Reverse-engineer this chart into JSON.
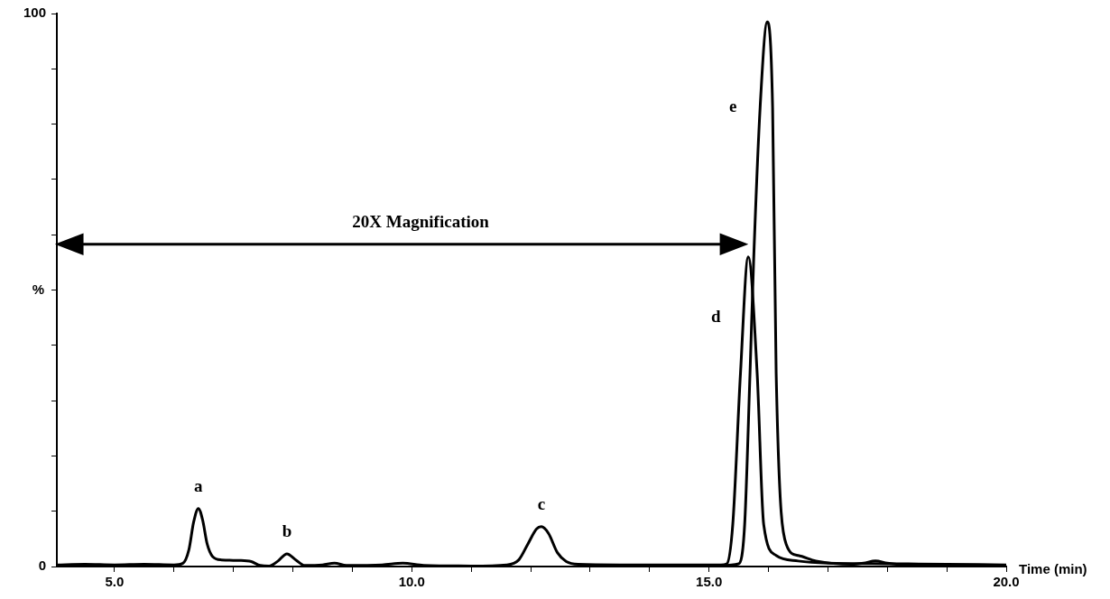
{
  "chart_data": {
    "type": "line",
    "xlabel": "Time (min)",
    "ylabel": "%",
    "xlim": [
      4.03,
      20
    ],
    "ylim": [
      0,
      100
    ],
    "xticks": [
      {
        "value": 5,
        "label": "5.0"
      },
      {
        "value": 6,
        "label": null
      },
      {
        "value": 7,
        "label": null
      },
      {
        "value": 8,
        "label": null
      },
      {
        "value": 9,
        "label": null
      },
      {
        "value": 10,
        "label": "10.0"
      },
      {
        "value": 11,
        "label": null
      },
      {
        "value": 12,
        "label": null
      },
      {
        "value": 13,
        "label": null
      },
      {
        "value": 14,
        "label": null
      },
      {
        "value": 15,
        "label": "15.0"
      },
      {
        "value": 16,
        "label": null
      },
      {
        "value": 17,
        "label": null
      },
      {
        "value": 18,
        "label": null
      },
      {
        "value": 19,
        "label": null
      },
      {
        "value": 20,
        "label": "20.0"
      }
    ],
    "yticks": [
      0,
      {
        "value": 10,
        "label": null
      },
      {
        "value": 20,
        "label": null
      },
      {
        "value": 30,
        "label": null
      },
      {
        "value": 40,
        "label": null
      },
      {
        "value": 50,
        "label": null
      },
      {
        "value": 60,
        "label": null
      },
      {
        "value": 70,
        "label": null
      },
      {
        "value": 80,
        "label": null
      },
      {
        "value": 90,
        "label": null
      },
      100
    ],
    "grid": false,
    "legend": false,
    "marker": "none",
    "line_style": "solid",
    "series": [
      {
        "color": "#000000",
        "x": [
          4.03,
          4.5,
          5.0,
          5.5,
          6.0,
          6.15,
          6.25,
          6.33,
          6.41,
          6.48,
          6.56,
          6.65,
          6.8,
          7.1,
          7.3,
          7.45,
          7.6,
          7.75,
          7.9,
          8.05,
          8.2,
          8.5,
          8.7,
          8.9,
          9.5,
          9.85,
          10.2,
          11.0,
          11.6,
          11.8,
          11.95,
          12.1,
          12.18,
          12.3,
          12.45,
          12.6,
          12.8,
          13.5,
          14.5,
          15.2,
          15.3,
          15.4,
          15.53,
          15.66,
          15.81,
          15.92,
          16.13,
          16.5,
          17.0,
          18.0,
          19.0,
          20.0
        ],
        "values": [
          0.3,
          0.4,
          0.3,
          0.4,
          0.3,
          0.6,
          3,
          8,
          10.5,
          8.5,
          4,
          1.8,
          1.2,
          1.1,
          0.9,
          0.2,
          0.1,
          1.0,
          2.3,
          1.2,
          0.2,
          0.3,
          0.6,
          0.2,
          0.3,
          0.6,
          0.2,
          0.1,
          0.3,
          1.2,
          4,
          6.8,
          7.2,
          6,
          2.5,
          0.9,
          0.4,
          0.3,
          0.3,
          0.3,
          0.5,
          7.6,
          35,
          56,
          35,
          7.6,
          2,
          1,
          0.6,
          0.5,
          0.4,
          0.3
        ]
      },
      {
        "color": "#000000",
        "x": [
          15.2,
          15.5,
          15.6,
          15.69,
          15.75,
          15.86,
          15.98,
          16.07,
          16.13,
          16.3,
          16.5,
          16.8,
          17.4,
          17.6,
          17.8,
          18.0,
          18.3,
          19.0,
          20.0
        ],
        "values": [
          0.2,
          0.5,
          7.6,
          35,
          55,
          83,
          98.5,
          83,
          35,
          4,
          2,
          1,
          0.4,
          0.6,
          1.0,
          0.6,
          0.3,
          0.2,
          0.2
        ]
      }
    ],
    "annotations": [
      "20X Magnification",
      {
        "text": "a",
        "x": 6.41,
        "y": 10.5
      },
      {
        "text": "b",
        "x": 7.9,
        "y": 2.3
      },
      {
        "text": "c",
        "x": 12.18,
        "y": 7.2
      },
      {
        "text": "d",
        "x": 15.57,
        "y": 45
      },
      {
        "text": "e",
        "x": 15.86,
        "y": 83
      }
    ]
  }
}
